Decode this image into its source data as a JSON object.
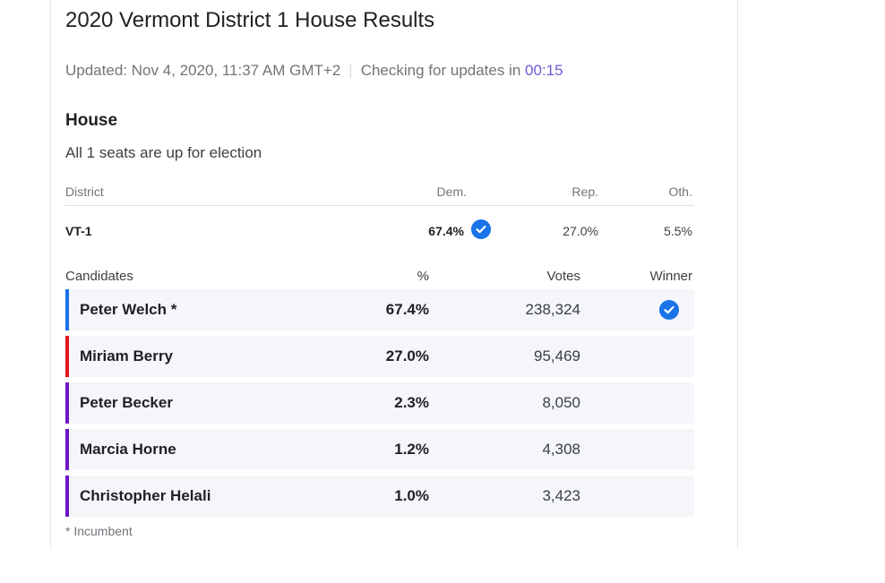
{
  "header": {
    "title": "2020 Vermont District 1 House Results",
    "updated": "Updated: Nov 4, 2020, 11:37 AM GMT+2",
    "separator": "|",
    "checking": "Checking for updates in",
    "timer": "00:15"
  },
  "section": {
    "title": "House",
    "subtitle": "All 1 seats are up for election"
  },
  "district_table": {
    "headers": {
      "district": "District",
      "dem": "Dem.",
      "rep": "Rep.",
      "oth": "Oth."
    },
    "row": {
      "district": "VT-1",
      "dem": "67.4%",
      "rep": "27.0%",
      "oth": "5.5%",
      "winner_party": "Dem."
    }
  },
  "candidates_table": {
    "headers": {
      "candidates": "Candidates",
      "pct": "%",
      "votes": "Votes",
      "winner": "Winner"
    },
    "rows": [
      {
        "name": "Peter Welch *",
        "pct": "67.4%",
        "votes": "238,324",
        "winner": true,
        "color": "#1a73e8"
      },
      {
        "name": "Miriam Berry",
        "pct": "27.0%",
        "votes": "95,469",
        "winner": false,
        "color": "#e3101e"
      },
      {
        "name": "Peter Becker",
        "pct": "2.3%",
        "votes": "8,050",
        "winner": false,
        "color": "#6f16c6"
      },
      {
        "name": "Marcia Horne",
        "pct": "1.2%",
        "votes": "4,308",
        "winner": false,
        "color": "#6f16c6"
      },
      {
        "name": "Christopher Helali",
        "pct": "1.0%",
        "votes": "3,423",
        "winner": false,
        "color": "#6f16c6"
      }
    ]
  },
  "footnote": "* Incumbent",
  "colors": {
    "accent_blue": "#1a73e8",
    "timer": "#6a5bd6",
    "row_bg": "#f4f6f9"
  },
  "icons": {
    "winner": "check-circle-icon"
  }
}
